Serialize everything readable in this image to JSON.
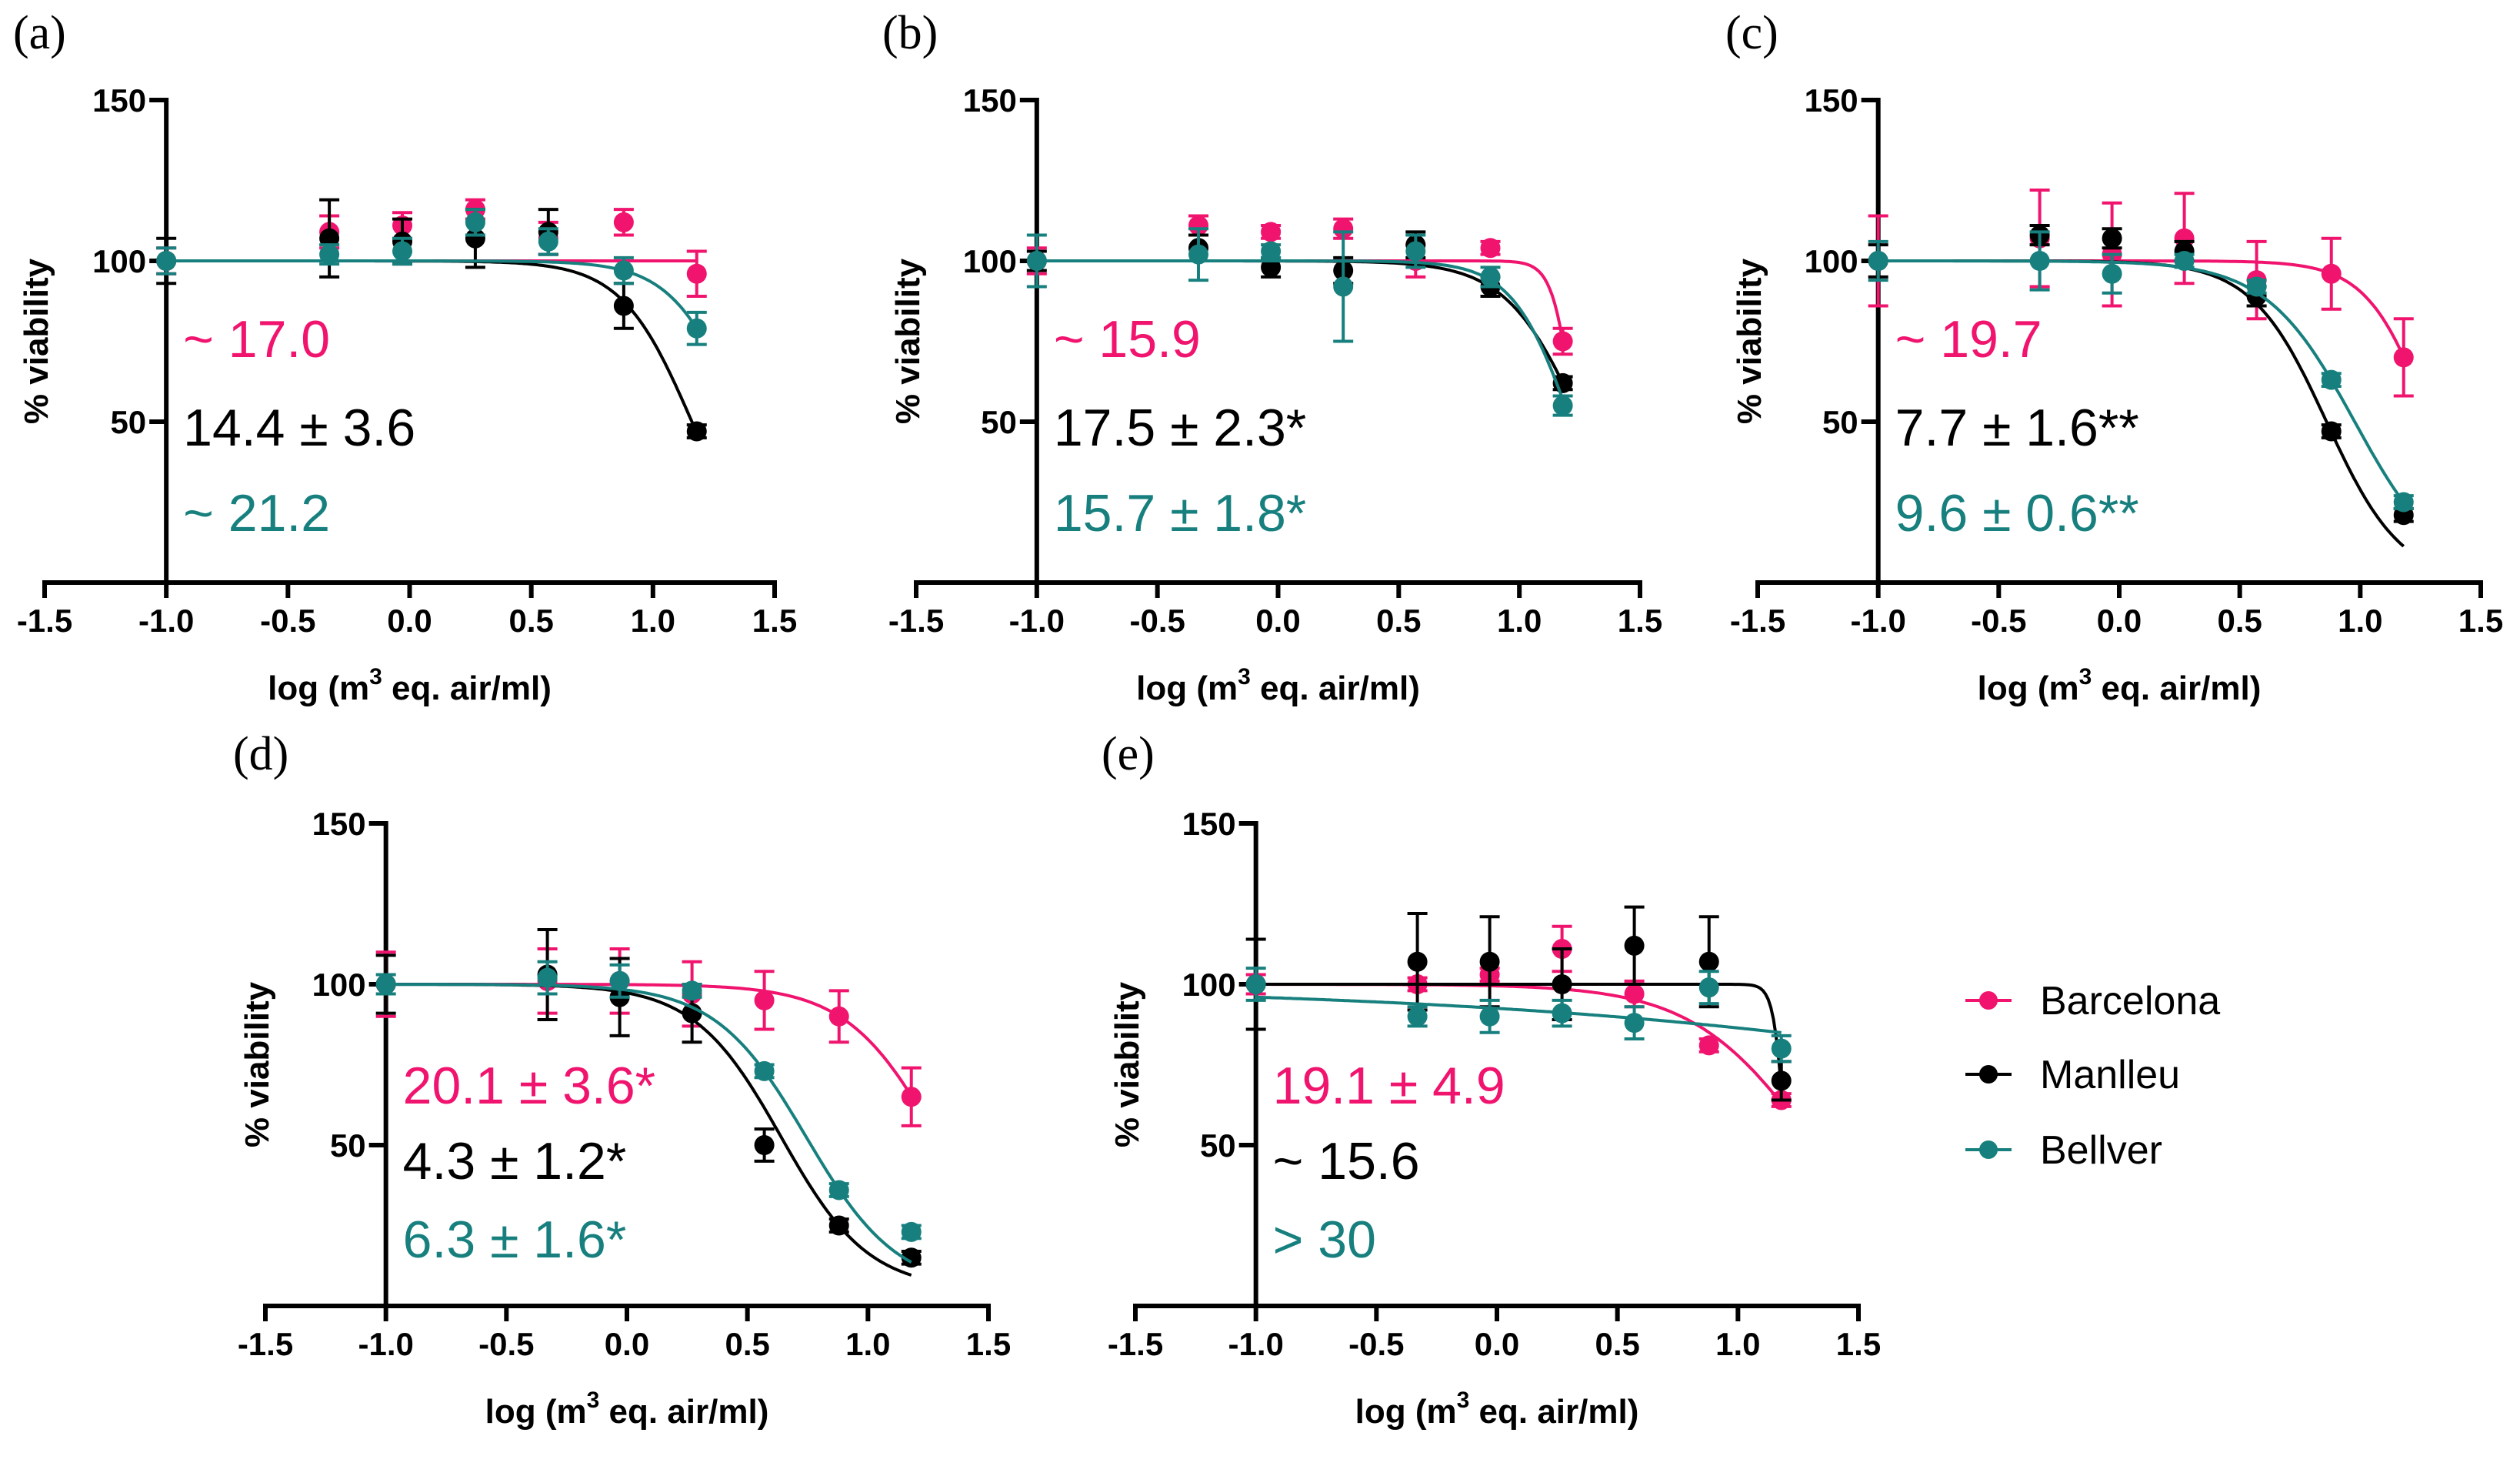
{
  "colors": {
    "Barcelona": "#f0146e",
    "Manlleu": "#000000",
    "Bellver": "#17807e"
  },
  "chart_data": {
    "type": "scatter",
    "description_series": [
      "Barcelona",
      "Manlleu",
      "Bellver"
    ],
    "legend": {
      "placement": "right",
      "entries": [
        "Barcelona",
        "Manlleu",
        "Bellver"
      ]
    },
    "xlabel": "log (m",
    "xlabel_sup": "3",
    "xlabel_end": " eq. air/ml)",
    "ylabel": "% viability",
    "xlim": [
      -1.5,
      1.5
    ],
    "ylim": [
      0,
      150
    ],
    "xticks": [
      "-1.5",
      "-1.0",
      "-0.5",
      "0.0",
      "0.5",
      "1.0",
      "1.5"
    ],
    "yticks": [
      "50",
      "100",
      "150"
    ],
    "x": [
      -1.0,
      -0.33,
      -0.03,
      0.27,
      0.57,
      0.88,
      1.18
    ],
    "panels": [
      {
        "label": "(a)",
        "series": [
          {
            "name": "Barcelona",
            "y": [
              100,
              109,
              111,
              116,
              107,
              112,
              96
            ],
            "err": [
              4,
              5,
              4,
              3,
              5,
              4,
              7
            ],
            "fit": {
              "bottom": 0,
              "logEC50": 3,
              "hill": 5
            }
          },
          {
            "name": "Manlleu",
            "y": [
              100,
              107,
              106,
              107,
              109,
              86,
              47
            ],
            "err": [
              7,
              12,
              7,
              9,
              7,
              7,
              2
            ],
            "fit": {
              "bottom": 0,
              "logEC50": 1.16,
              "hill": 3
            }
          },
          {
            "name": "Bellver",
            "y": [
              100,
              102,
              103,
              112,
              106,
              97,
              79
            ],
            "err": [
              4,
              3,
              4,
              4,
              4,
              4,
              5
            ],
            "fit": {
              "bottom": 0,
              "logEC50": 1.365,
              "hill": 3.1
            }
          }
        ],
        "annotations": [
          {
            "series": "Barcelona",
            "text": "~ 17.0"
          },
          {
            "series": "Manlleu",
            "text": "14.4 ± 3.6"
          },
          {
            "series": "Bellver",
            "text": "~ 21.2"
          }
        ]
      },
      {
        "label": "(b)",
        "series": [
          {
            "name": "Barcelona",
            "y": [
              100,
              111,
              109,
              110,
              100,
              104,
              75
            ],
            "err": [
              4,
              3,
              2,
              3,
              5,
              2,
              4
            ],
            "fit": {
              "bottom": 0,
              "logEC50": 1.228,
              "hill": 10
            }
          },
          {
            "name": "Manlleu",
            "y": [
              100,
              104,
              98,
              97,
              105,
              92,
              62
            ],
            "err": [
              3,
              4,
              3,
              4,
              4,
              3,
              2
            ],
            "fit": {
              "bottom": 0,
              "logEC50": 1.256,
              "hill": 2.8
            }
          },
          {
            "name": "Bellver",
            "y": [
              100,
              102,
              103,
              92,
              103,
              95,
              55
            ],
            "err": [
              8,
              8,
              2,
              17,
              5,
              3,
              3
            ],
            "fit": {
              "bottom": 0,
              "logEC50": 1.214,
              "hill": 3.57
            }
          }
        ],
        "annotations": [
          {
            "series": "Barcelona",
            "text": "~ 15.9"
          },
          {
            "series": "Manlleu",
            "text": "17.5 ± 2.3*"
          },
          {
            "series": "Bellver",
            "text": "15.7 ± 1.8*"
          }
        ]
      },
      {
        "label": "(c)",
        "series": [
          {
            "name": "Barcelona",
            "y": [
              100,
              107,
              102,
              107,
              94,
              96,
              70
            ],
            "err": [
              14,
              15,
              16,
              14,
              12,
              11,
              12
            ],
            "fit": {
              "bottom": 0,
              "logEC50": 1.29,
              "hill": 3.37
            }
          },
          {
            "name": "Manlleu",
            "y": [
              100,
              108,
              107,
              103,
              89,
              47,
              21
            ],
            "err": [
              5,
              3,
              3,
              3,
              3,
              2,
              2
            ],
            "fit": {
              "bottom": 0,
              "logEC50": 0.86,
              "hill": 2.8
            }
          },
          {
            "name": "Bellver",
            "y": [
              100,
              100,
              96,
              100,
              92,
              63,
              25
            ],
            "err": [
              6,
              9,
              6,
              2,
              2,
              2,
              2
            ],
            "fit": {
              "bottom": 0,
              "logEC50": 0.977,
              "hill": 2.36
            }
          }
        ],
        "annotations": [
          {
            "series": "Barcelona",
            "text": "~ 19.7"
          },
          {
            "series": "Manlleu",
            "text": "7.7 ± 1.6**"
          },
          {
            "series": "Bellver",
            "text": "9.6 ± 0.6**"
          }
        ]
      },
      {
        "label": "(d)",
        "series": [
          {
            "name": "Barcelona",
            "y": [
              100,
              101,
              101,
              97,
              95,
              90,
              65
            ],
            "err": [
              10,
              10,
              10,
              10,
              9,
              8,
              9
            ],
            "fit": {
              "bottom": 0,
              "logEC50": 1.3,
              "hill": 2.28
            }
          },
          {
            "name": "Manlleu",
            "y": [
              100,
              103,
              96,
              91,
              50,
              25,
              15
            ],
            "err": [
              9,
              14,
              12,
              9,
              5,
              2,
              2
            ],
            "fit": {
              "bottom": 5,
              "logEC50": 0.64,
              "hill": 2.4
            }
          },
          {
            "name": "Bellver",
            "y": [
              100,
              102,
              101,
              98,
              73,
              36,
              23
            ],
            "err": [
              3,
              5,
              5,
              2,
              2,
              2,
              2
            ],
            "fit": {
              "bottom": 5,
              "logEC50": 0.744,
              "hill": 2.3
            }
          }
        ],
        "annotations": [
          {
            "series": "Barcelona",
            "text": "20.1 ± 3.6*"
          },
          {
            "series": "Manlleu",
            "text": "4.3 ± 1.2*"
          },
          {
            "series": "Bellver",
            "text": "6.3 ± 1.6*"
          }
        ]
      },
      {
        "label": "(e)",
        "series": [
          {
            "name": "Barcelona",
            "y": [
              100,
              100,
              103,
              111,
              97,
              81,
              64
            ],
            "err": [
              3,
              2,
              2,
              7,
              4,
              2,
              2
            ],
            "fit": {
              "bottom": 0,
              "logEC50": 1.313,
              "hill": 1.74
            }
          },
          {
            "name": "Manlleu",
            "y": [
              100,
              107,
              107,
              100,
              112,
              107,
              70
            ],
            "err": [
              14,
              15,
              14,
              11,
              12,
              14,
              6
            ],
            "fit": {
              "bottom": 0,
              "logEC50": 1.198,
              "hill": 18
            }
          },
          {
            "name": "Bellver",
            "y": [
              100,
              90,
              90,
              91,
              88,
              99,
              80
            ],
            "err": [
              5,
              3,
              5,
              4,
              5,
              5,
              4
            ],
            "fit": {
              "bottom": 0,
              "logEC50": 3.79,
              "hill": 0.288
            }
          }
        ],
        "annotations": [
          {
            "series": "Barcelona",
            "text": "19.1 ± 4.9"
          },
          {
            "series": "Manlleu",
            "text": "~ 15.6"
          },
          {
            "series": "Bellver",
            "text": "> 30"
          }
        ]
      }
    ]
  }
}
